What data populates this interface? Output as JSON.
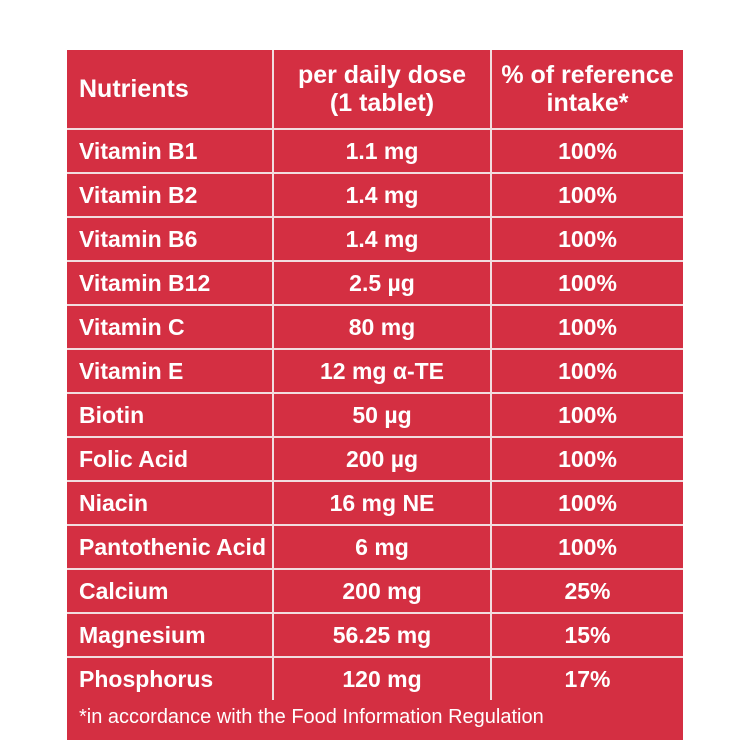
{
  "table": {
    "headers": {
      "nutrients": "Nutrients",
      "dose_line1": "per daily dose",
      "dose_line2": "(1 tablet)",
      "ref_line1": "% of reference",
      "ref_line2": "intake*"
    },
    "rows": [
      {
        "nutrient": "Vitamin B1",
        "dose": "1.1 mg",
        "ri": "100%"
      },
      {
        "nutrient": "Vitamin B2",
        "dose": "1.4 mg",
        "ri": "100%"
      },
      {
        "nutrient": "Vitamin B6",
        "dose": "1.4 mg",
        "ri": "100%"
      },
      {
        "nutrient": "Vitamin B12",
        "dose": "2.5 µg",
        "ri": "100%"
      },
      {
        "nutrient": "Vitamin C",
        "dose": "80 mg",
        "ri": "100%"
      },
      {
        "nutrient": "Vitamin E",
        "dose": "12 mg α-TE",
        "ri": "100%"
      },
      {
        "nutrient": "Biotin",
        "dose": "50 µg",
        "ri": "100%"
      },
      {
        "nutrient": "Folic Acid",
        "dose": "200 µg",
        "ri": "100%"
      },
      {
        "nutrient": "Niacin",
        "dose": "16 mg NE",
        "ri": "100%"
      },
      {
        "nutrient": "Pantothenic Acid",
        "dose": "6 mg",
        "ri": "100%"
      },
      {
        "nutrient": "Calcium",
        "dose": "200 mg",
        "ri": "25%"
      },
      {
        "nutrient": "Magnesium",
        "dose": "56.25 mg",
        "ri": "15%"
      },
      {
        "nutrient": "Phosphorus",
        "dose": "120 mg",
        "ri": "17%"
      }
    ],
    "footnote": "*in accordance with the Food Information Regulation"
  },
  "colors": {
    "panel_background": "#d42f42",
    "text": "#ffffff",
    "grid_lines": "#f2dcdf"
  }
}
